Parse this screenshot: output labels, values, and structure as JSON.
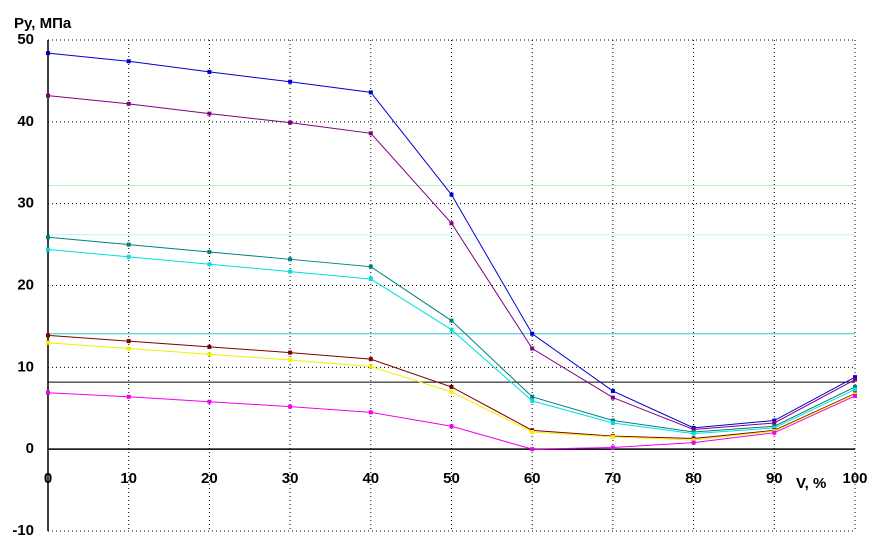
{
  "chart_data": {
    "type": "line",
    "y_label": "Py, МПа",
    "x_label": "V, %",
    "x": [
      0,
      10,
      20,
      30,
      40,
      50,
      60,
      70,
      80,
      90,
      100
    ],
    "xlim": [
      0,
      100
    ],
    "xticks": [
      0,
      10,
      20,
      30,
      40,
      50,
      60,
      70,
      80,
      90,
      100
    ],
    "ylim": [
      -10,
      50
    ],
    "yticks": [
      -10,
      0,
      10,
      20,
      30,
      40,
      50
    ],
    "grid": true,
    "reference_lines": [
      {
        "value": 32.2,
        "color": "#b8f0b8"
      },
      {
        "value": 26.2,
        "color": "#b8f4f4"
      },
      {
        "value": 14.1,
        "color": "#20c8d0"
      },
      {
        "value": 8.2,
        "color": "#000000"
      }
    ],
    "series": [
      {
        "color": "#0000d0",
        "values": [
          48.4,
          47.4,
          46.1,
          44.9,
          43.6,
          31.1,
          14.1,
          7.1,
          2.6,
          3.5,
          8.8
        ]
      },
      {
        "color": "#800080",
        "values": [
          43.2,
          42.2,
          41.0,
          39.9,
          38.6,
          27.6,
          12.3,
          6.3,
          2.4,
          3.2,
          8.5
        ]
      },
      {
        "color": "#008080",
        "values": [
          25.9,
          25.0,
          24.1,
          23.2,
          22.3,
          15.7,
          6.4,
          3.5,
          2.1,
          2.8,
          7.6
        ]
      },
      {
        "color": "#00e0e0",
        "values": [
          24.4,
          23.5,
          22.6,
          21.7,
          20.8,
          14.6,
          5.9,
          3.2,
          1.9,
          2.6,
          7.3
        ]
      },
      {
        "color": "#800000",
        "values": [
          13.9,
          13.2,
          12.5,
          11.8,
          11.0,
          7.6,
          2.3,
          1.6,
          1.3,
          2.3,
          6.8
        ]
      },
      {
        "color": "#f0f000",
        "values": [
          13.0,
          12.3,
          11.6,
          10.9,
          10.1,
          7.0,
          2.1,
          1.5,
          1.1,
          2.2,
          6.7
        ]
      },
      {
        "color": "#f000f0",
        "values": [
          6.9,
          6.4,
          5.8,
          5.2,
          4.5,
          2.8,
          0.0,
          0.2,
          0.8,
          2.0,
          6.5
        ]
      }
    ]
  }
}
